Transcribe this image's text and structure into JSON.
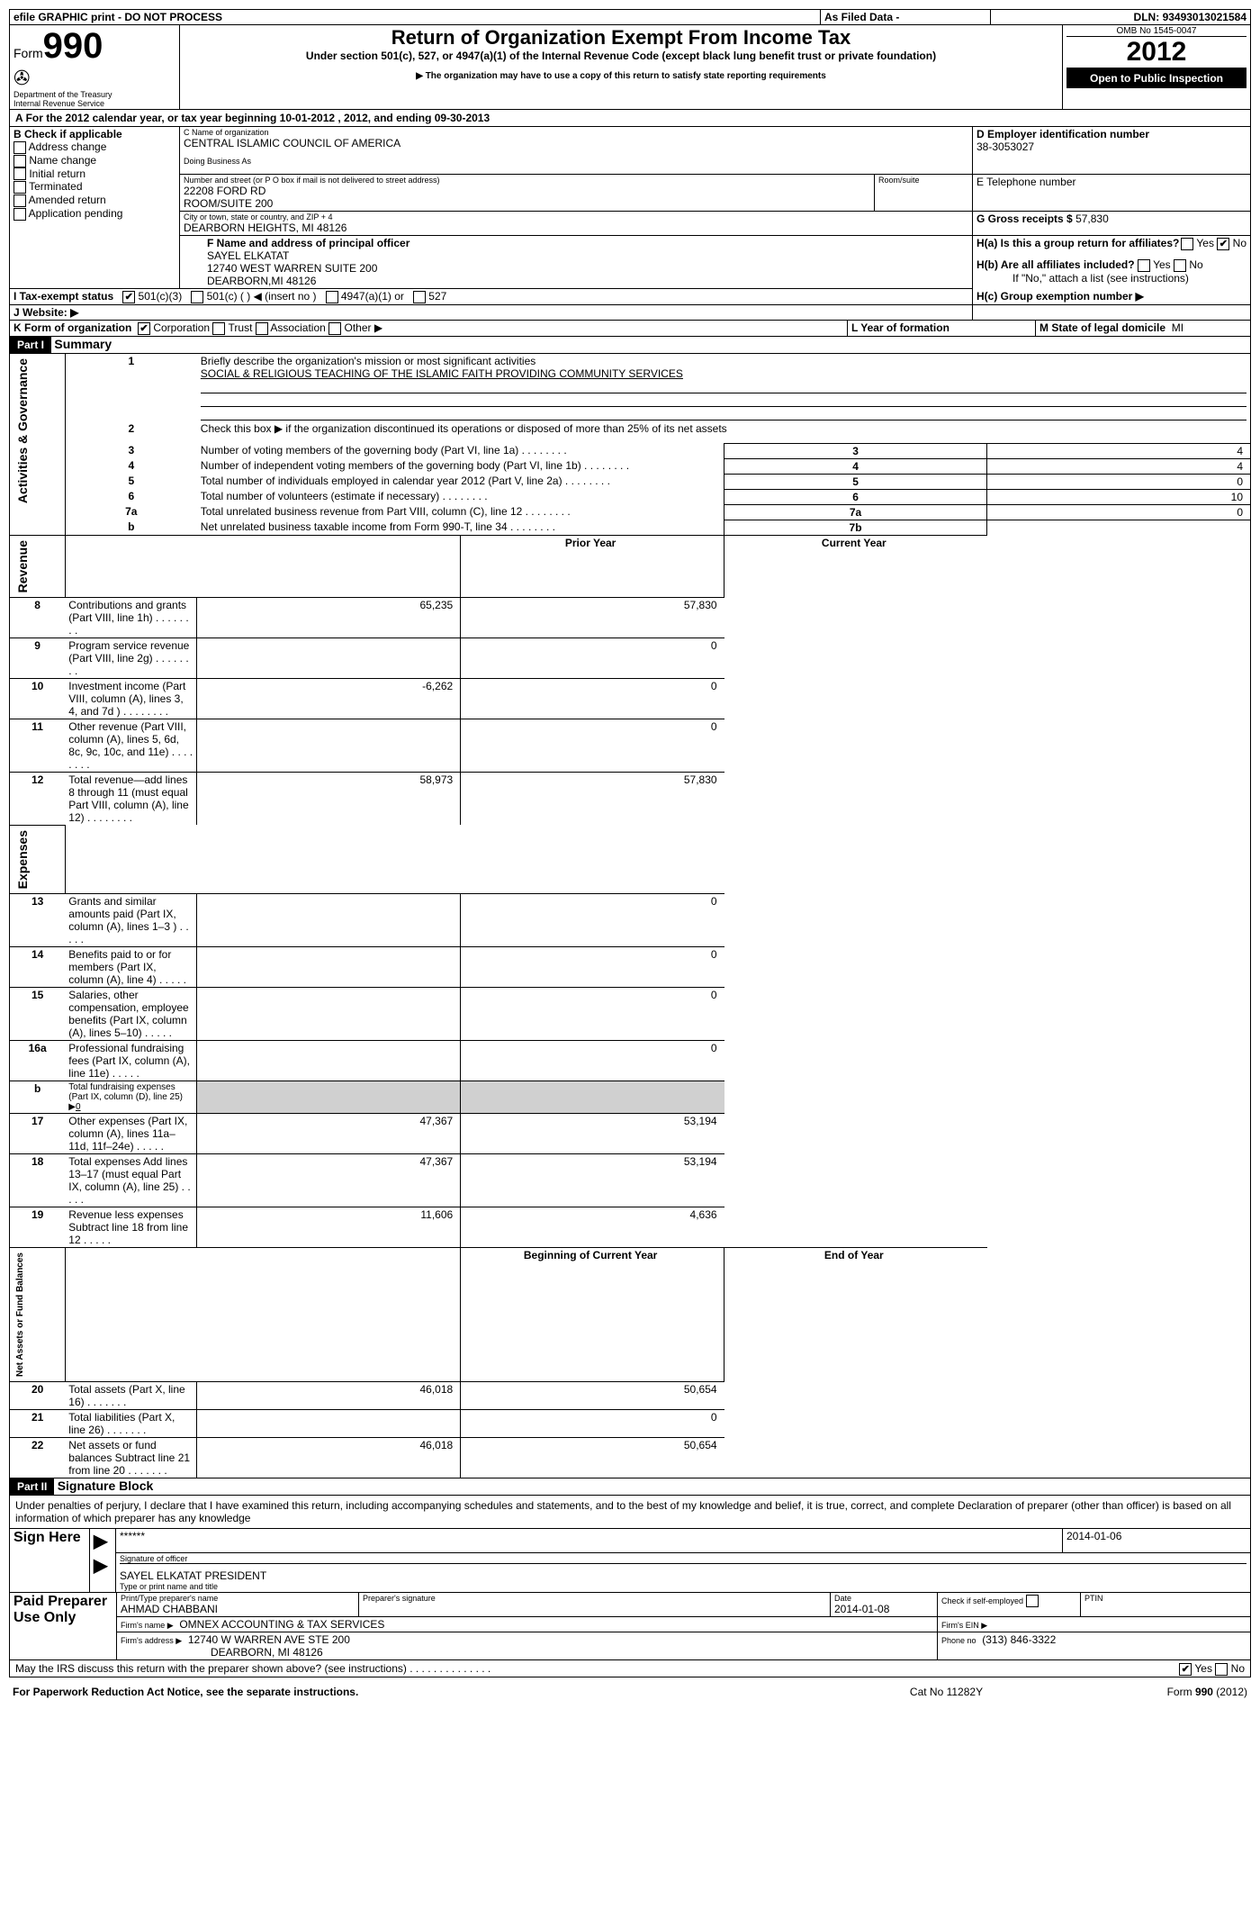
{
  "topbar": {
    "efile_text": "efile GRAPHIC print - DO NOT PROCESS",
    "as_filed": "As Filed Data -",
    "dln_label": "DLN:",
    "dln": "93493013021584"
  },
  "header": {
    "form_word": "Form",
    "form_num": "990",
    "dept1": "Department of the Treasury",
    "dept2": "Internal Revenue Service",
    "title": "Return of Organization Exempt From Income Tax",
    "sub1": "Under section 501(c), 527, or 4947(a)(1) of the Internal Revenue Code (except black lung benefit trust or private foundation)",
    "sub2": "▶ The organization may have to use a copy of this return to satisfy state reporting requirements",
    "omb": "OMB No 1545-0047",
    "year": "2012",
    "open": "Open to Public Inspection"
  },
  "line_a": "For the 2012 calendar year, or tax year beginning 10-01-2012    , 2012, and ending 09-30-2013",
  "section_b": {
    "label": "B  Check if applicable",
    "items": [
      "Address change",
      "Name change",
      "Initial return",
      "Terminated",
      "Amended return",
      "Application pending"
    ]
  },
  "section_c": {
    "name_label": "C Name of organization",
    "name": "CENTRAL ISLAMIC COUNCIL OF AMERICA",
    "dba_label": "Doing Business As",
    "street_label": "Number and street (or P O  box if mail is not delivered to street address)",
    "room_label": "Room/suite",
    "street1": "22208 FORD RD",
    "street2": "ROOM/SUITE 200",
    "city_label": "City or town, state or country, and ZIP + 4",
    "city": "DEARBORN HEIGHTS, MI  48126"
  },
  "section_d": {
    "label": "D Employer identification number",
    "value": "38-3053027"
  },
  "section_e": {
    "label": "E Telephone number"
  },
  "section_g": {
    "label": "G Gross receipts $",
    "value": "57,830"
  },
  "section_f": {
    "label": "F    Name and address of principal officer",
    "line1": "SAYEL ELKATAT",
    "line2": "12740 WEST WARREN SUITE 200",
    "line3": "DEARBORN,MI  48126"
  },
  "section_h": {
    "ha": "H(a)  Is this a group return for affiliates?",
    "hb": "H(b)  Are all affiliates included?",
    "hb_note": "If \"No,\" attach a list  (see instructions)",
    "hc": "H(c)    Group exemption number ▶",
    "yes": "Yes",
    "no": "No"
  },
  "section_i": {
    "label": "I    Tax-exempt status",
    "opt1": "501(c)(3)",
    "opt2": "501(c) (   )",
    "opt2_note": "◀ (insert no )",
    "opt3": "4947(a)(1) or",
    "opt4": "527"
  },
  "section_j": "J   Website: ▶",
  "section_k": {
    "label": "K Form of organization",
    "opts": [
      "Corporation",
      "Trust",
      "Association",
      "Other ▶"
    ]
  },
  "section_l": "L Year of formation",
  "section_m": {
    "label": "M State of legal domicile",
    "value": "MI"
  },
  "part1": {
    "header": "Part I",
    "title": "Summary",
    "q1_label": "Briefly describe the organization's mission or most significant activities",
    "q1_value": "SOCIAL & RELIGIOUS TEACHING OF THE ISLAMIC FAITH PROVIDING COMMUNITY SERVICES",
    "q2": "Check this box ▶         if the organization discontinued its operations or disposed of more than 25% of its net assets",
    "rows_gov": [
      {
        "n": "3",
        "t": "Number of voting members of the governing body (Part VI, line 1a)",
        "k": "3",
        "v": "4"
      },
      {
        "n": "4",
        "t": "Number of independent voting members of the governing body (Part VI, line 1b)",
        "k": "4",
        "v": "4"
      },
      {
        "n": "5",
        "t": "Total number of individuals employed in calendar year 2012 (Part V, line 2a)",
        "k": "5",
        "v": "0"
      },
      {
        "n": "6",
        "t": "Total number of volunteers (estimate if necessary)",
        "k": "6",
        "v": "10"
      },
      {
        "n": "7a",
        "t": "Total unrelated business revenue from Part VIII, column (C), line 12",
        "k": "7a",
        "v": "0"
      },
      {
        "n": "b",
        "t": "Net unrelated business taxable income from Form 990-T, line 34",
        "k": "7b",
        "v": ""
      }
    ],
    "col_prior": "Prior Year",
    "col_curr": "Current Year",
    "rev": [
      {
        "n": "8",
        "t": "Contributions and grants (Part VIII, line 1h)",
        "p": "65,235",
        "c": "57,830"
      },
      {
        "n": "9",
        "t": "Program service revenue (Part VIII, line 2g)",
        "p": "",
        "c": "0"
      },
      {
        "n": "10",
        "t": "Investment income (Part VIII, column (A), lines 3, 4, and 7d )",
        "p": "-6,262",
        "c": "0"
      },
      {
        "n": "11",
        "t": "Other revenue (Part VIII, column (A), lines 5, 6d, 8c, 9c, 10c, and 11e)",
        "p": "",
        "c": "0"
      },
      {
        "n": "12",
        "t": "Total revenue—add lines 8 through 11 (must equal Part VIII, column (A), line 12)",
        "p": "58,973",
        "c": "57,830"
      }
    ],
    "exp": [
      {
        "n": "13",
        "t": "Grants and similar amounts paid (Part IX, column (A), lines 1–3 )",
        "p": "",
        "c": "0"
      },
      {
        "n": "14",
        "t": "Benefits paid to or for members (Part IX, column (A), line 4)",
        "p": "",
        "c": "0"
      },
      {
        "n": "15",
        "t": "Salaries, other compensation, employee benefits (Part IX, column (A), lines 5–10)",
        "p": "",
        "c": "0"
      },
      {
        "n": "16a",
        "t": "Professional fundraising fees (Part IX, column (A), line 11e)",
        "p": "",
        "c": "0"
      },
      {
        "n": "b",
        "t": "Total fundraising expenses (Part IX, column (D), line 25) ▶",
        "p": "",
        "c": "",
        "sub": "0"
      },
      {
        "n": "17",
        "t": "Other expenses (Part IX, column (A), lines 11a–11d, 11f–24e)",
        "p": "47,367",
        "c": "53,194"
      },
      {
        "n": "18",
        "t": "Total expenses  Add lines 13–17 (must equal Part IX, column (A), line 25)",
        "p": "47,367",
        "c": "53,194"
      },
      {
        "n": "19",
        "t": "Revenue less expenses  Subtract line 18 from line 12",
        "p": "11,606",
        "c": "4,636"
      }
    ],
    "col_begin": "Beginning of Current Year",
    "col_end": "End of Year",
    "net": [
      {
        "n": "20",
        "t": "Total assets (Part X, line 16)",
        "p": "46,018",
        "c": "50,654"
      },
      {
        "n": "21",
        "t": "Total liabilities (Part X, line 26)",
        "p": "",
        "c": "0"
      },
      {
        "n": "22",
        "t": "Net assets or fund balances  Subtract line 21 from line 20",
        "p": "46,018",
        "c": "50,654"
      }
    ],
    "side_gov": "Activities & Governance",
    "side_rev": "Revenue",
    "side_exp": "Expenses",
    "side_net": "Net Assets or Fund Balances"
  },
  "part2": {
    "header": "Part II",
    "title": "Signature Block",
    "decl": "Under penalties of perjury, I declare that I have examined this return, including accompanying schedules and statements, and to the best of my knowledge and belief, it is true, correct, and complete  Declaration of preparer (other than officer) is based on all information of which preparer has any knowledge",
    "sign_here": "Sign Here",
    "sig_stars": "******",
    "sig_off_label": "Signature of officer",
    "sig_date": "2014-01-06",
    "date_label": "Date",
    "officer": "SAYEL ELKATAT PRESIDENT",
    "officer_label": "Type or print name and title",
    "paid": "Paid Preparer Use Only",
    "prep_name_label": "Print/Type preparer's name",
    "prep_name": "AHMAD CHABBANI",
    "prep_sig_label": "Preparer's signature",
    "prep_date_label": "Date",
    "prep_date": "2014-01-08",
    "check_self": "Check           if self-employed",
    "ptin": "PTIN",
    "firm_name_label": "Firm's name      ▶",
    "firm_name": "OMNEX ACCOUNTING & TAX SERVICES",
    "firm_ein": "Firm's EIN ▶",
    "firm_addr_label": "Firm's address ▶",
    "firm_addr1": "12740 W WARREN AVE STE 200",
    "firm_addr2": "DEARBORN, MI  48126",
    "phone_label": "Phone no",
    "phone": "(313) 846-3322",
    "discuss": "May the IRS discuss this return with the preparer shown above? (see instructions)"
  },
  "footer": {
    "pra": "For Paperwork Reduction Act Notice, see the separate instructions.",
    "cat": "Cat No  11282Y",
    "form": "Form 990 (2012)"
  }
}
